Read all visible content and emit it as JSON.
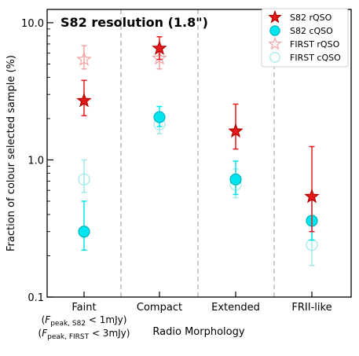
{
  "chart_data": {
    "type": "scatter",
    "title": "S82 resolution (1.8\")",
    "xlabel": "Radio Morphology",
    "ylabel": "Fraction of colour selected sample (%)",
    "yscale": "log",
    "ylim": [
      0.1,
      12.5
    ],
    "yticks": [
      "0.1",
      "1.0",
      "10.0"
    ],
    "categories": [
      "Faint",
      "Compact",
      "Extended",
      "FRII-like"
    ],
    "faint_note": [
      {
        "pre": "(",
        "f": "F",
        "sub": "peak, S82",
        "post": " < 1mJy)"
      },
      {
        "pre": "(",
        "f": "F",
        "sub": "peak, FIRST",
        "post": " < 3mJy)"
      }
    ],
    "legend_position": "top-right",
    "grid": false,
    "series": [
      {
        "name": "S82 rQSO",
        "marker": "star",
        "filled": true,
        "color": "#e31a1c",
        "values": [
          2.7,
          6.5,
          1.62,
          0.54
        ],
        "err_low": [
          2.1,
          5.4,
          1.2,
          0.3
        ],
        "err_high": [
          3.8,
          7.9,
          2.55,
          1.25
        ]
      },
      {
        "name": "S82 cQSO",
        "marker": "circle",
        "filled": true,
        "color": "#00e5ee",
        "values": [
          0.3,
          2.05,
          0.72,
          0.36
        ],
        "err_low": [
          0.22,
          1.75,
          0.56,
          0.26
        ],
        "err_high": [
          0.5,
          2.45,
          0.98,
          0.52
        ]
      },
      {
        "name": "FIRST rQSO",
        "marker": "star",
        "filled": false,
        "color": "#f4a3a3",
        "values": [
          5.4,
          5.5,
          null,
          null
        ],
        "err_low": [
          4.6,
          4.6,
          null,
          null
        ],
        "err_high": [
          6.8,
          6.8,
          null,
          null
        ]
      },
      {
        "name": "FIRST cQSO",
        "marker": "circle",
        "filled": false,
        "color": "#9fe8e8",
        "values": [
          0.72,
          1.82,
          0.66,
          0.24
        ],
        "err_low": [
          0.58,
          1.55,
          0.53,
          0.17
        ],
        "err_high": [
          1.0,
          2.1,
          0.86,
          0.33
        ]
      }
    ]
  }
}
